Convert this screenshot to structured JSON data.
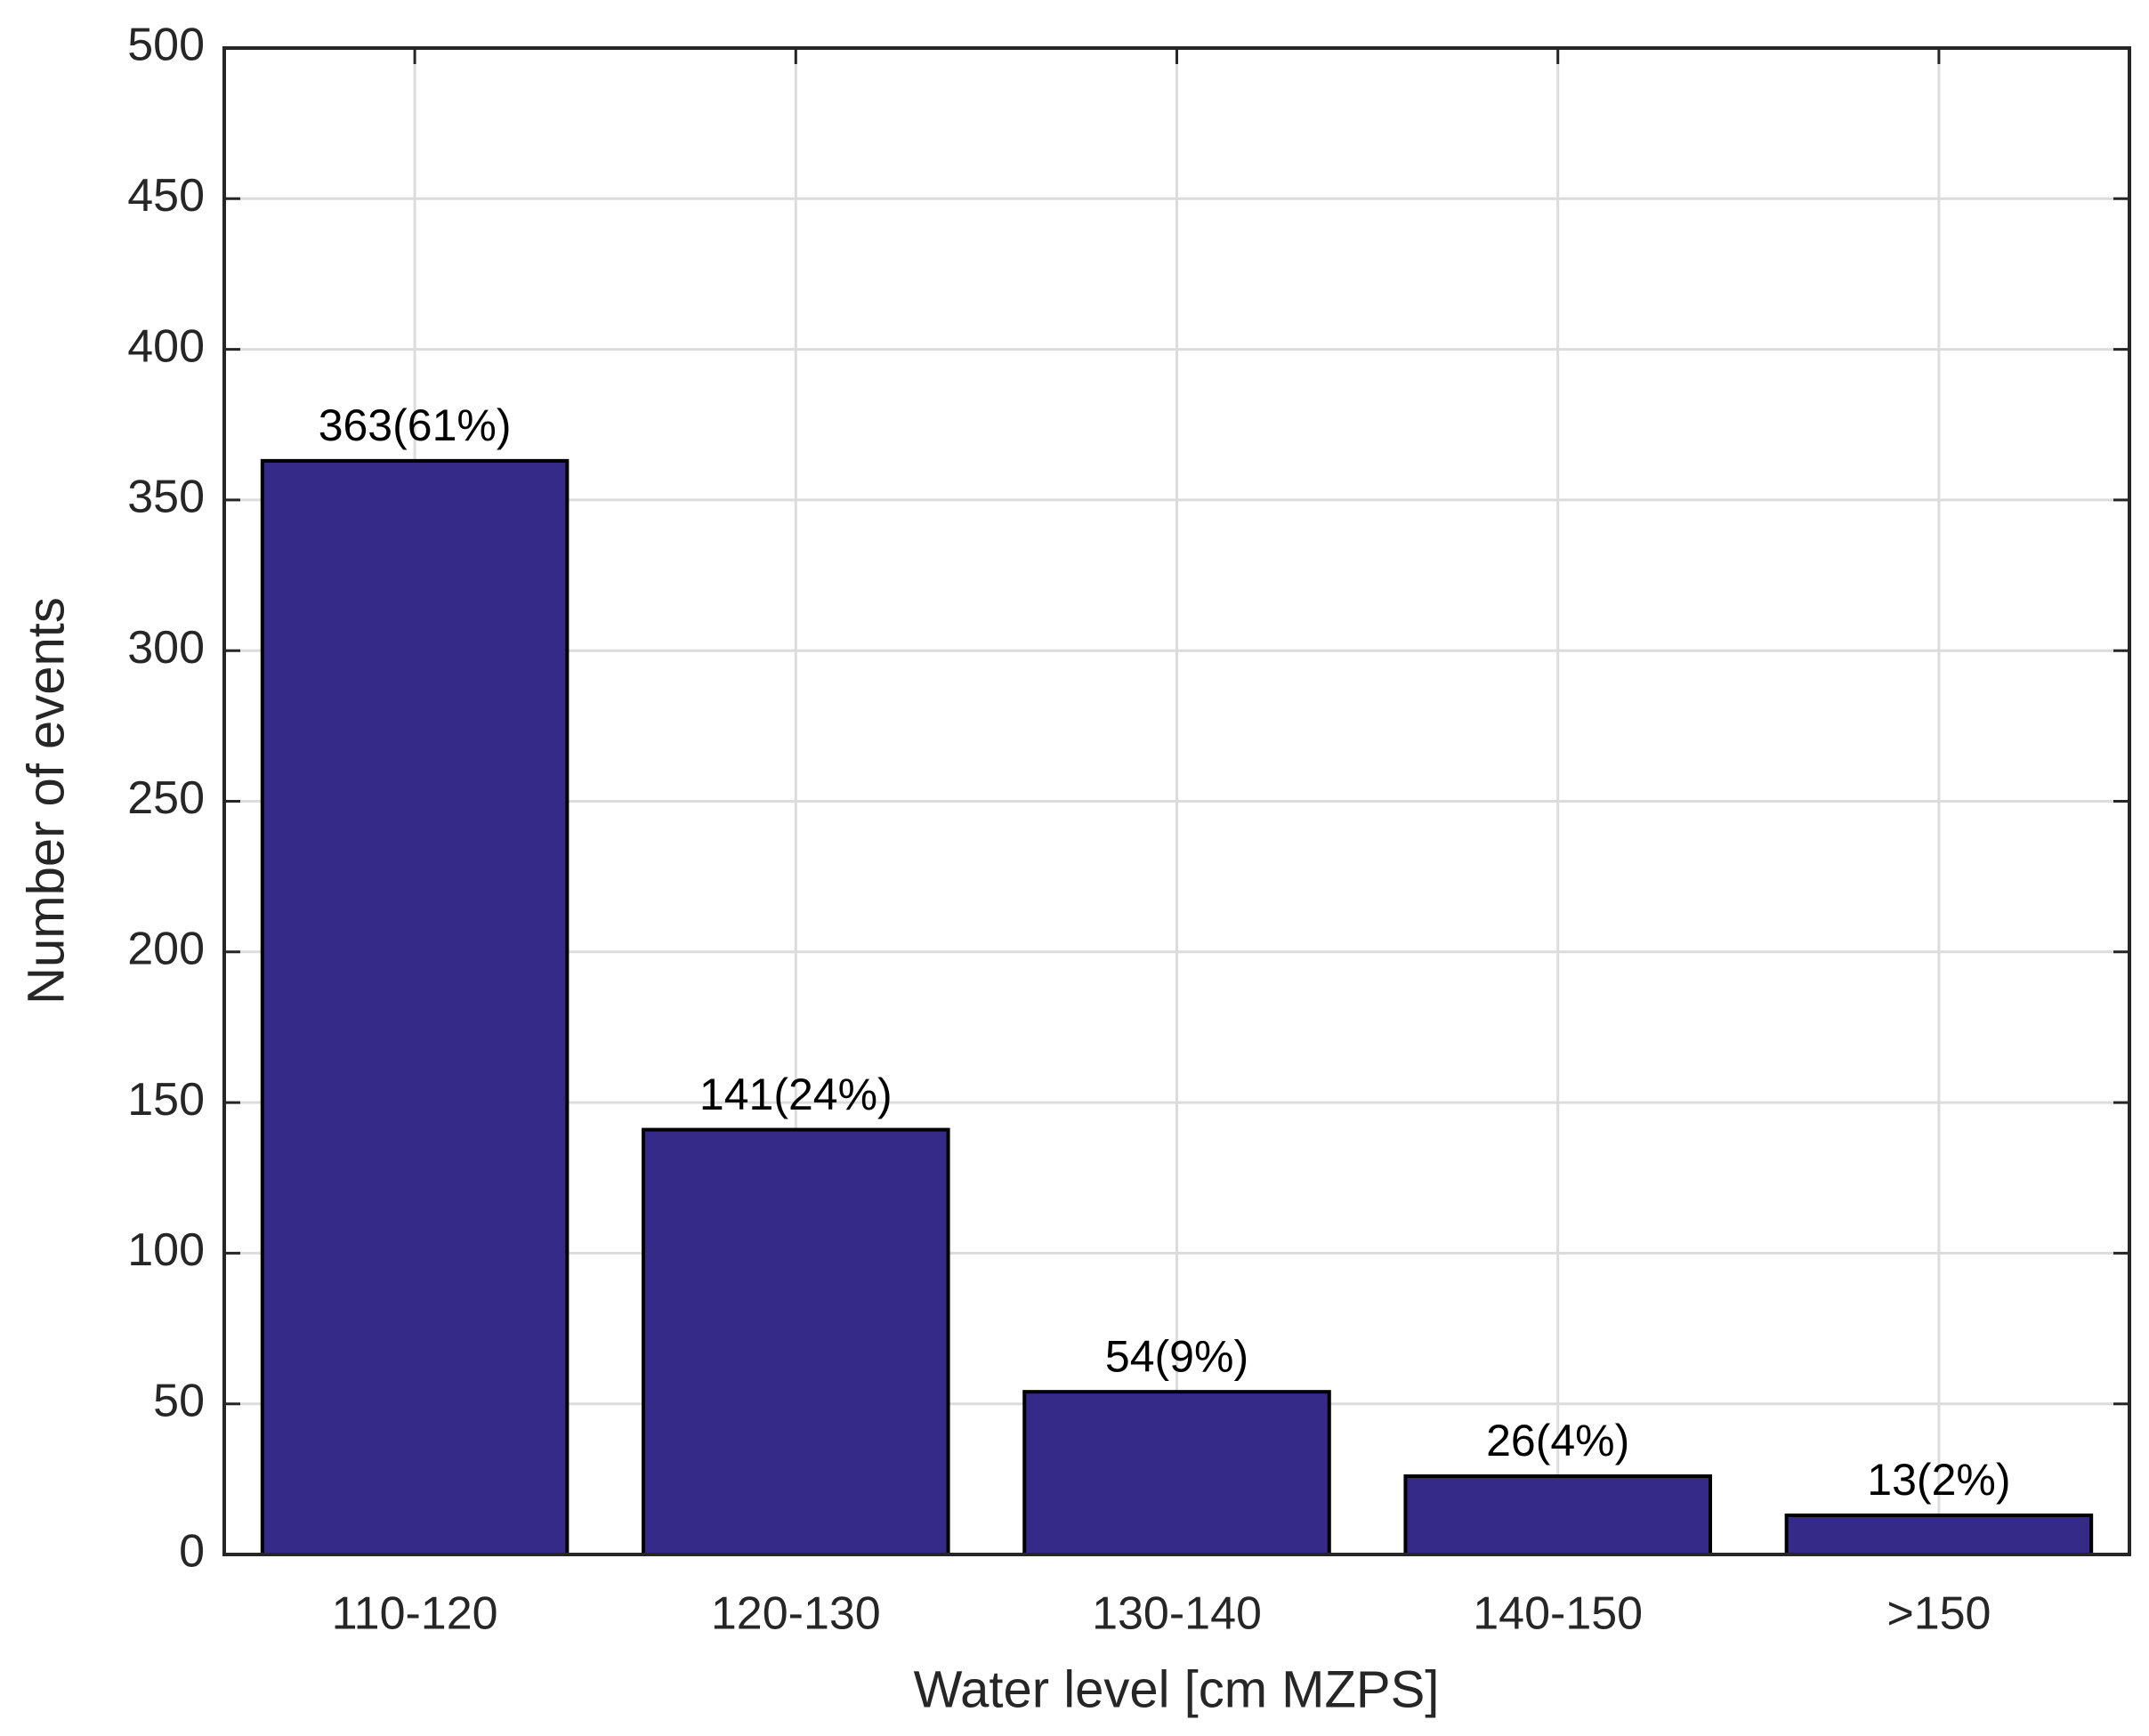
{
  "chart_data": {
    "type": "bar",
    "xlabel": "Water level [cm MZPS]",
    "ylabel": "Number of events",
    "categories": [
      "110-120",
      "120-130",
      "130-140",
      "140-150",
      ">150"
    ],
    "values": [
      363,
      141,
      54,
      26,
      13
    ],
    "value_labels": [
      "363(61%)",
      "141(24%)",
      "54(9%)",
      "26(4%)",
      "13(2%)"
    ],
    "color": "#352a87",
    "ylim": [
      0,
      500
    ],
    "yticks": [
      0,
      50,
      100,
      150,
      200,
      250,
      300,
      350,
      400,
      450,
      500
    ],
    "grid": true
  }
}
